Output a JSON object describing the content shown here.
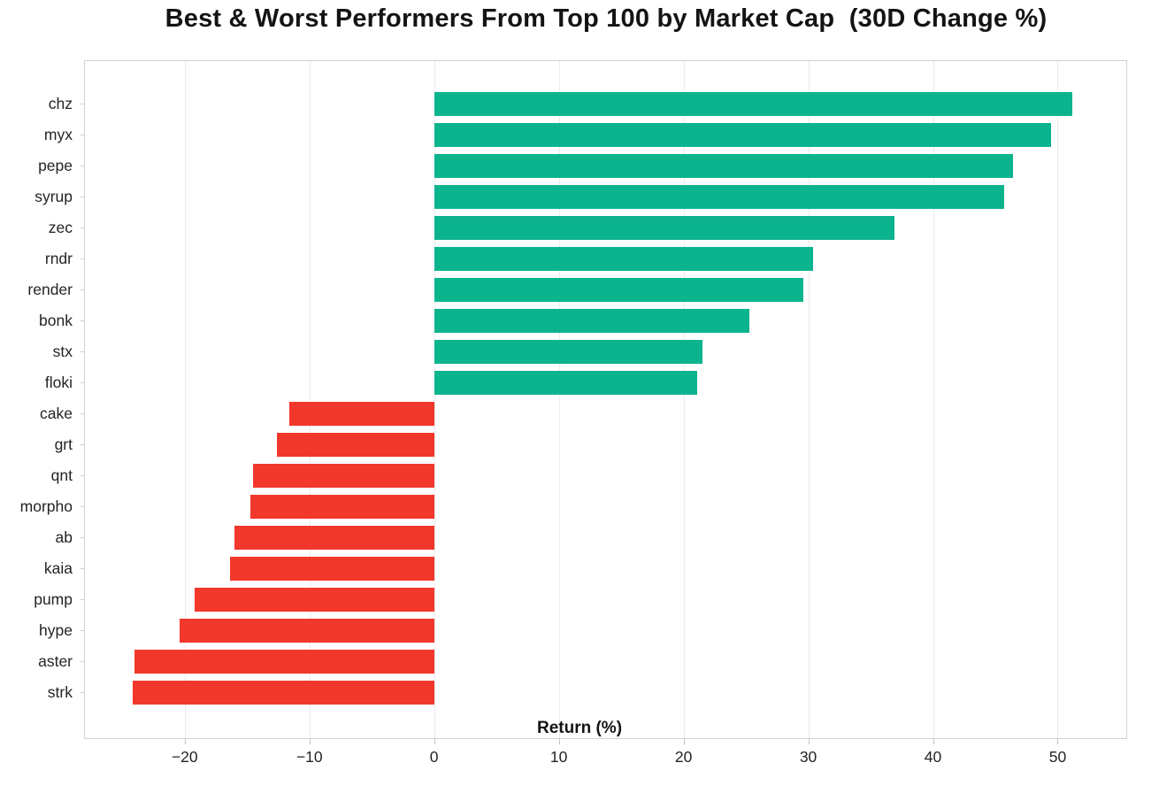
{
  "title": "Best & Worst Performers From Top 100 by Market Cap  (30D Change %)",
  "xlabel": "Return (%)",
  "colors": {
    "positive_bar": "#0cb48e",
    "negative_bar": "#f2382c",
    "spine": "#d2d2d2",
    "gridline": "#ebebeb",
    "text": "#141414"
  },
  "chart_data": {
    "type": "bar",
    "orientation": "horizontal",
    "title": "Best & Worst Performers From Top 100 by Market Cap  (30D Change %)",
    "xlabel": "Return (%)",
    "ylabel": "",
    "categories": [
      "chz",
      "myx",
      "pepe",
      "syrup",
      "zec",
      "rndr",
      "render",
      "bonk",
      "stx",
      "floki",
      "cake",
      "grt",
      "qnt",
      "morpho",
      "ab",
      "kaia",
      "pump",
      "hype",
      "aster",
      "strk"
    ],
    "values": [
      51.2,
      49.5,
      46.4,
      45.7,
      36.9,
      30.4,
      29.6,
      25.3,
      21.5,
      21.1,
      -11.6,
      -12.6,
      -14.5,
      -14.7,
      -16.0,
      -16.4,
      -19.2,
      -20.4,
      -24.0,
      -24.2
    ],
    "xlim": [
      -28,
      55.5
    ],
    "xticks": [
      -20,
      -10,
      0,
      10,
      20,
      30,
      40,
      50
    ],
    "grid": "vertical",
    "legend": "none",
    "positive_color": "#0cb48e",
    "negative_color": "#f2382c"
  }
}
